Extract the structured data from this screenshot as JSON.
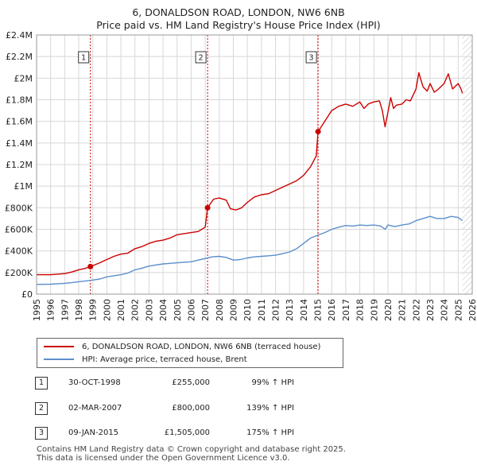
{
  "title_line1": "6, DONALDSON ROAD, LONDON, NW6 6NB",
  "title_line2": "Price paid vs. HM Land Registry's House Price Index (HPI)",
  "legend": {
    "property_label": "6, DONALDSON ROAD, LONDON, NW6 6NB (terraced house)",
    "hpi_label": "HPI: Average price, terraced house, Brent"
  },
  "colors": {
    "property": "#cc0000",
    "hpi": "#5b8fcc",
    "grid": "#d8d8d8",
    "plot_bg": "#ffffff",
    "shade": "#eef2fb",
    "hatch": "#c8c8c8",
    "vline": "#cc0000"
  },
  "sales": [
    {
      "num": "1",
      "date": "30-OCT-1998",
      "price": "£255,000",
      "hpi": "99% ↑ HPI"
    },
    {
      "num": "2",
      "date": "02-MAR-2007",
      "price": "£800,000",
      "hpi": "139% ↑ HPI"
    },
    {
      "num": "3",
      "date": "09-JAN-2015",
      "price": "£1,505,000",
      "hpi": "175% ↑ HPI"
    }
  ],
  "footer_line1": "Contains HM Land Registry data © Crown copyright and database right 2025.",
  "footer_line2": "This data is licensed under the Open Government Licence v3.0.",
  "chart_data": {
    "type": "line",
    "x_range": [
      1995,
      2026
    ],
    "ylim": [
      0,
      2400000
    ],
    "y_ticks": [
      0,
      200000,
      400000,
      600000,
      800000,
      1000000,
      1200000,
      1400000,
      1600000,
      1800000,
      2000000,
      2200000,
      2400000
    ],
    "y_tick_labels": [
      "£0",
      "£200K",
      "£400K",
      "£600K",
      "£800K",
      "£1M",
      "£1.2M",
      "£1.4M",
      "£1.6M",
      "£1.8M",
      "£2M",
      "£2.2M",
      "£2.4M"
    ],
    "x_ticks": [
      1995,
      1996,
      1997,
      1998,
      1999,
      2000,
      2001,
      2002,
      2003,
      2004,
      2005,
      2006,
      2007,
      2008,
      2009,
      2010,
      2011,
      2012,
      2013,
      2014,
      2015,
      2016,
      2017,
      2018,
      2019,
      2020,
      2021,
      2022,
      2023,
      2024,
      2025,
      2026
    ],
    "x_tick_labels": [
      "1995",
      "1996",
      "1997",
      "1998",
      "1999",
      "2000",
      "2001",
      "2002",
      "2003",
      "2004",
      "2005",
      "2006",
      "2007",
      "2008",
      "2009",
      "2010",
      "2011",
      "2012",
      "2013",
      "2014",
      "2015",
      "2016",
      "2017",
      "2018",
      "2019",
      "2020",
      "2021",
      "2022",
      "2023",
      "2024",
      "2025",
      "2026"
    ],
    "hatch_from": 2025.3,
    "sale_markers": [
      {
        "label": "1",
        "x": 1998.83,
        "y": 255000
      },
      {
        "label": "2",
        "x": 2007.17,
        "y": 800000
      },
      {
        "label": "3",
        "x": 2015.03,
        "y": 1505000
      }
    ],
    "series": [
      {
        "name": "6, DONALDSON ROAD, LONDON, NW6 6NB (terraced house)",
        "x": [
          1995.0,
          1996.0,
          1997.0,
          1997.5,
          1998.0,
          1998.5,
          1998.83,
          1999.5,
          2000.0,
          2000.5,
          2001.0,
          2001.5,
          2002.0,
          2002.5,
          2003.0,
          2003.5,
          2004.0,
          2004.5,
          2005.0,
          2005.5,
          2006.0,
          2006.5,
          2007.0,
          2007.17,
          2007.6,
          2008.0,
          2008.5,
          2008.8,
          2009.2,
          2009.6,
          2010.0,
          2010.5,
          2011.0,
          2011.5,
          2012.0,
          2012.5,
          2013.0,
          2013.5,
          2014.0,
          2014.5,
          2014.9,
          2015.03,
          2015.5,
          2016.0,
          2016.5,
          2017.0,
          2017.5,
          2018.0,
          2018.3,
          2018.6,
          2019.0,
          2019.4,
          2019.6,
          2019.8,
          2020.2,
          2020.4,
          2020.6,
          2021.0,
          2021.3,
          2021.6,
          2022.0,
          2022.2,
          2022.5,
          2022.8,
          2023.0,
          2023.3,
          2023.6,
          2024.0,
          2024.3,
          2024.6,
          2025.0,
          2025.2,
          2025.3
        ],
        "y": [
          180000,
          180000,
          190000,
          205000,
          225000,
          240000,
          255000,
          290000,
          320000,
          350000,
          370000,
          380000,
          420000,
          440000,
          470000,
          490000,
          500000,
          520000,
          550000,
          560000,
          570000,
          580000,
          620000,
          800000,
          880000,
          890000,
          870000,
          790000,
          780000,
          800000,
          850000,
          900000,
          920000,
          930000,
          960000,
          990000,
          1020000,
          1050000,
          1100000,
          1180000,
          1280000,
          1505000,
          1600000,
          1700000,
          1740000,
          1760000,
          1740000,
          1780000,
          1720000,
          1760000,
          1780000,
          1790000,
          1700000,
          1550000,
          1820000,
          1720000,
          1750000,
          1760000,
          1800000,
          1790000,
          1900000,
          2050000,
          1920000,
          1880000,
          1950000,
          1870000,
          1900000,
          1950000,
          2040000,
          1900000,
          1950000,
          1900000,
          1860000
        ]
      },
      {
        "name": "HPI: Average price, terraced house, Brent",
        "x": [
          1995.0,
          1996.0,
          1997.0,
          1997.5,
          1998.0,
          1998.5,
          1999.0,
          1999.5,
          2000.0,
          2000.5,
          2001.0,
          2001.5,
          2002.0,
          2002.5,
          2003.0,
          2003.5,
          2004.0,
          2004.5,
          2005.0,
          2005.5,
          2006.0,
          2006.5,
          2007.0,
          2007.5,
          2008.0,
          2008.5,
          2009.0,
          2009.5,
          2010.0,
          2010.5,
          2011.0,
          2011.5,
          2012.0,
          2012.5,
          2013.0,
          2013.5,
          2014.0,
          2014.5,
          2015.0,
          2015.5,
          2016.0,
          2016.5,
          2017.0,
          2017.5,
          2018.0,
          2018.5,
          2019.0,
          2019.5,
          2019.8,
          2020.0,
          2020.5,
          2021.0,
          2021.5,
          2022.0,
          2022.5,
          2023.0,
          2023.5,
          2024.0,
          2024.5,
          2025.0,
          2025.3
        ],
        "y": [
          90000,
          92000,
          100000,
          106000,
          115000,
          122000,
          130000,
          140000,
          160000,
          170000,
          180000,
          195000,
          225000,
          240000,
          260000,
          270000,
          280000,
          285000,
          290000,
          295000,
          300000,
          315000,
          330000,
          345000,
          350000,
          340000,
          315000,
          320000,
          335000,
          345000,
          350000,
          355000,
          360000,
          375000,
          390000,
          420000,
          470000,
          520000,
          545000,
          570000,
          600000,
          620000,
          635000,
          630000,
          640000,
          635000,
          640000,
          630000,
          600000,
          640000,
          625000,
          640000,
          650000,
          680000,
          700000,
          720000,
          700000,
          700000,
          720000,
          710000,
          680000
        ]
      }
    ]
  }
}
